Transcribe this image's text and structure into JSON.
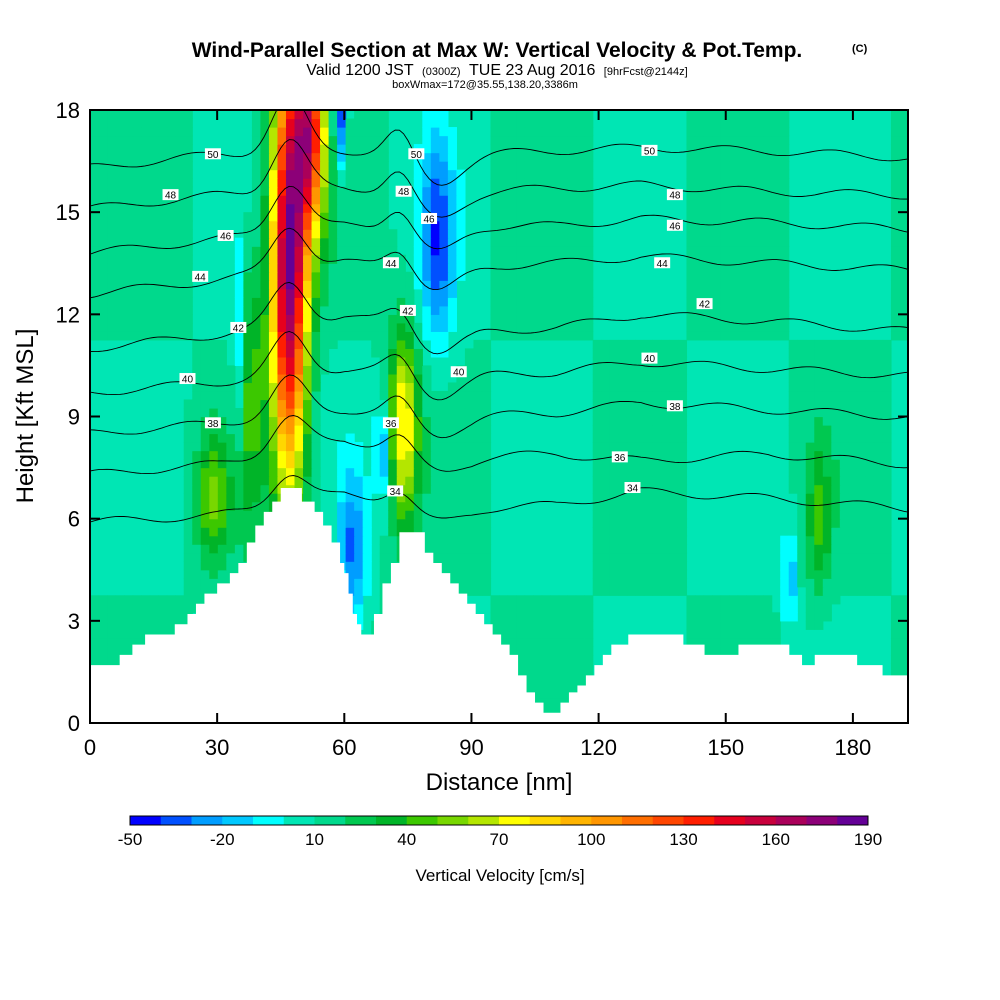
{
  "title": {
    "main": "Wind-Parallel Section at Max W: Vertical Velocity & Pot.Temp.",
    "copyright": "(C)",
    "valid_a": "Valid 1200 JST",
    "valid_b": "(0300Z)",
    "valid_c": "TUE 23 Aug 2016",
    "valid_d": "[9hrFcst@2144z]",
    "box": "boxWmax=172@35.55,138.20,3386m"
  },
  "chart_data": {
    "type": "heatmap",
    "xlabel": "Distance [nm]",
    "ylabel": "Height [Kft MSL]",
    "xlim": [
      0,
      193
    ],
    "ylim": [
      0,
      18
    ],
    "x_ticks": [
      0,
      30,
      60,
      90,
      120,
      150,
      180
    ],
    "x_tick_labels": [
      "0",
      "30",
      "60",
      "90",
      "120",
      "150",
      "180"
    ],
    "y_ticks": [
      0,
      3,
      6,
      9,
      12,
      15,
      18
    ],
    "y_tick_labels": [
      "0",
      "3",
      "6",
      "9",
      "12",
      "15",
      "18"
    ],
    "colorbar": {
      "label": "Vertical Velocity [cm/s]",
      "levels": [
        -50,
        -40,
        -30,
        -20,
        -10,
        0,
        10,
        20,
        30,
        40,
        50,
        60,
        70,
        80,
        90,
        100,
        110,
        120,
        130,
        140,
        150,
        160,
        170,
        180,
        190
      ],
      "tick_labels": [
        "-50",
        "-20",
        "10",
        "40",
        "70",
        "100",
        "130",
        "160",
        "190"
      ],
      "tick_values": [
        -50,
        -20,
        10,
        40,
        70,
        100,
        130,
        160,
        190
      ],
      "colors": [
        "#0000ff",
        "#0050ff",
        "#009dff",
        "#00c8ff",
        "#00ffff",
        "#00e6b4",
        "#00d98c",
        "#00c850",
        "#00b428",
        "#3cc800",
        "#78d700",
        "#b4e600",
        "#ffff00",
        "#ffd700",
        "#ffb400",
        "#ff9600",
        "#ff6e00",
        "#ff4600",
        "#ff1e00",
        "#e6001e",
        "#c8003c",
        "#aa005a",
        "#8c0078",
        "#640096"
      ]
    },
    "terrain": [
      [
        0,
        1.7
      ],
      [
        5,
        1.7
      ],
      [
        7,
        2.0
      ],
      [
        10,
        2.3
      ],
      [
        13,
        2.6
      ],
      [
        17,
        2.6
      ],
      [
        20,
        2.9
      ],
      [
        23,
        3.2
      ],
      [
        25,
        3.5
      ],
      [
        27,
        3.8
      ],
      [
        30,
        4.1
      ],
      [
        33,
        4.4
      ],
      [
        35,
        4.7
      ],
      [
        37,
        5.3
      ],
      [
        39,
        5.8
      ],
      [
        41,
        6.2
      ],
      [
        43,
        6.5
      ],
      [
        45,
        6.9
      ],
      [
        48,
        6.9
      ],
      [
        50,
        6.5
      ],
      [
        53,
        6.2
      ],
      [
        55,
        5.8
      ],
      [
        57,
        5.3
      ],
      [
        59,
        4.7
      ],
      [
        60,
        4.4
      ],
      [
        61,
        3.8
      ],
      [
        62,
        3.2
      ],
      [
        63,
        2.9
      ],
      [
        64,
        2.6
      ],
      [
        65,
        2.6
      ],
      [
        67,
        3.2
      ],
      [
        69,
        4.1
      ],
      [
        71,
        4.7
      ],
      [
        73,
        5.6
      ],
      [
        77,
        5.6
      ],
      [
        79,
        5.0
      ],
      [
        81,
        4.7
      ],
      [
        83,
        4.4
      ],
      [
        85,
        4.1
      ],
      [
        87,
        3.8
      ],
      [
        89,
        3.5
      ],
      [
        91,
        3.2
      ],
      [
        93,
        2.9
      ],
      [
        95,
        2.6
      ],
      [
        97,
        2.3
      ],
      [
        99,
        2.0
      ],
      [
        101,
        1.4
      ],
      [
        103,
        0.9
      ],
      [
        105,
        0.6
      ],
      [
        107,
        0.3
      ],
      [
        109,
        0.3
      ],
      [
        111,
        0.6
      ],
      [
        113,
        0.9
      ],
      [
        115,
        1.1
      ],
      [
        117,
        1.4
      ],
      [
        119,
        1.7
      ],
      [
        121,
        2.0
      ],
      [
        123,
        2.3
      ],
      [
        127,
        2.6
      ],
      [
        137,
        2.6
      ],
      [
        140,
        2.3
      ],
      [
        145,
        2.0
      ],
      [
        151,
        2.0
      ],
      [
        153,
        2.3
      ],
      [
        161,
        2.3
      ],
      [
        165,
        2.0
      ],
      [
        168,
        1.7
      ],
      [
        171,
        2.0
      ],
      [
        177,
        2.0
      ],
      [
        181,
        1.7
      ],
      [
        184,
        1.7
      ],
      [
        187,
        1.4
      ],
      [
        193,
        1.4
      ]
    ],
    "updraft_cores": [
      {
        "x": 47,
        "y": 13.5,
        "sx": 3.0,
        "sy": 4.5,
        "w": 170
      },
      {
        "x": 52,
        "y": 17.5,
        "sx": 2.6,
        "sy": 2.2,
        "w": 120
      },
      {
        "x": 74,
        "y": 8.8,
        "sx": 2.4,
        "sy": 2.0,
        "w": 70
      },
      {
        "x": 29,
        "y": 6.6,
        "sx": 2.8,
        "sy": 1.3,
        "w": 40
      },
      {
        "x": 38,
        "y": 10.0,
        "sx": 2.0,
        "sy": 3.0,
        "w": 30
      },
      {
        "x": 172,
        "y": 6.0,
        "sx": 2.0,
        "sy": 1.5,
        "w": 30
      }
    ],
    "downdraft_cores": [
      {
        "x": 82,
        "y": 14.2,
        "sx": 2.8,
        "sy": 2.2,
        "w": -45
      },
      {
        "x": 62,
        "y": 5.0,
        "sx": 2.2,
        "sy": 1.6,
        "w": -40
      },
      {
        "x": 59,
        "y": 17.8,
        "sx": 1.0,
        "sy": 1.2,
        "w": -50
      },
      {
        "x": 69,
        "y": 8.0,
        "sx": 1.2,
        "sy": 1.0,
        "w": -35
      },
      {
        "x": 165,
        "y": 4.2,
        "sx": 1.2,
        "sy": 1.0,
        "w": -30
      },
      {
        "x": 35,
        "y": 11.0,
        "sx": 1.0,
        "sy": 2.0,
        "w": -25
      }
    ],
    "isentropes": [
      {
        "theta": 34,
        "x": [
          0,
          30,
          60,
          90,
          110,
          130,
          160,
          193
        ],
        "y": [
          5.9,
          6.1,
          6.7,
          6.3,
          6.4,
          6.8,
          6.6,
          6.3
        ]
      },
      {
        "theta": 36,
        "x": [
          0,
          30,
          60,
          90,
          110,
          130,
          160,
          193
        ],
        "y": [
          7.3,
          7.6,
          8.3,
          7.8,
          7.9,
          7.7,
          7.9,
          7.6
        ]
      },
      {
        "theta": 38,
        "x": [
          0,
          30,
          60,
          90,
          110,
          130,
          160,
          193
        ],
        "y": [
          8.5,
          8.8,
          9.2,
          9.0,
          9.1,
          9.4,
          9.2,
          9.0
        ]
      },
      {
        "theta": 40,
        "x": [
          0,
          30,
          60,
          90,
          110,
          130,
          160,
          193
        ],
        "y": [
          9.7,
          10.0,
          10.4,
          10.2,
          10.3,
          10.6,
          10.4,
          10.2
        ]
      },
      {
        "theta": 42,
        "x": [
          0,
          30,
          60,
          90,
          110,
          130,
          160,
          193
        ],
        "y": [
          11.0,
          11.4,
          11.9,
          11.5,
          11.6,
          12.0,
          11.8,
          11.5
        ]
      },
      {
        "theta": 44,
        "x": [
          0,
          30,
          60,
          90,
          110,
          130,
          160,
          193
        ],
        "y": [
          12.6,
          13.0,
          13.5,
          13.4,
          13.5,
          13.7,
          13.5,
          13.3
        ]
      },
      {
        "theta": 46,
        "x": [
          0,
          30,
          60,
          90,
          110,
          130,
          160,
          193
        ],
        "y": [
          13.8,
          14.2,
          14.6,
          14.6,
          14.6,
          14.8,
          14.7,
          14.5
        ]
      },
      {
        "theta": 48,
        "x": [
          0,
          30,
          60,
          90,
          110,
          130,
          160,
          193
        ],
        "y": [
          15.1,
          15.5,
          15.7,
          15.6,
          15.7,
          15.8,
          15.6,
          15.5
        ]
      },
      {
        "theta": 50,
        "x": [
          0,
          30,
          60,
          90,
          110,
          130,
          160,
          193
        ],
        "y": [
          16.3,
          16.7,
          16.8,
          16.7,
          16.8,
          16.9,
          16.8,
          16.6
        ]
      }
    ],
    "contour_labels": [
      {
        "text": "50",
        "x": 29,
        "y": 16.7
      },
      {
        "text": "50",
        "x": 77,
        "y": 16.7
      },
      {
        "text": "50",
        "x": 132,
        "y": 16.8
      },
      {
        "text": "48",
        "x": 19,
        "y": 15.5
      },
      {
        "text": "48",
        "x": 74,
        "y": 15.6
      },
      {
        "text": "48",
        "x": 138,
        "y": 15.5
      },
      {
        "text": "46",
        "x": 32,
        "y": 14.3
      },
      {
        "text": "46",
        "x": 80,
        "y": 14.8
      },
      {
        "text": "46",
        "x": 138,
        "y": 14.6
      },
      {
        "text": "44",
        "x": 26,
        "y": 13.1
      },
      {
        "text": "44",
        "x": 71,
        "y": 13.5
      },
      {
        "text": "44",
        "x": 135,
        "y": 13.5
      },
      {
        "text": "42",
        "x": 35,
        "y": 11.6
      },
      {
        "text": "42",
        "x": 75,
        "y": 12.1
      },
      {
        "text": "42",
        "x": 145,
        "y": 12.3
      },
      {
        "text": "40",
        "x": 23,
        "y": 10.1
      },
      {
        "text": "40",
        "x": 87,
        "y": 10.3
      },
      {
        "text": "40",
        "x": 132,
        "y": 10.7
      },
      {
        "text": "38",
        "x": 29,
        "y": 8.8
      },
      {
        "text": "38",
        "x": 138,
        "y": 9.3
      },
      {
        "text": "36",
        "x": 71,
        "y": 8.8
      },
      {
        "text": "36",
        "x": 125,
        "y": 7.8
      },
      {
        "text": "34",
        "x": 72,
        "y": 6.8
      },
      {
        "text": "34",
        "x": 128,
        "y": 6.9
      }
    ]
  }
}
